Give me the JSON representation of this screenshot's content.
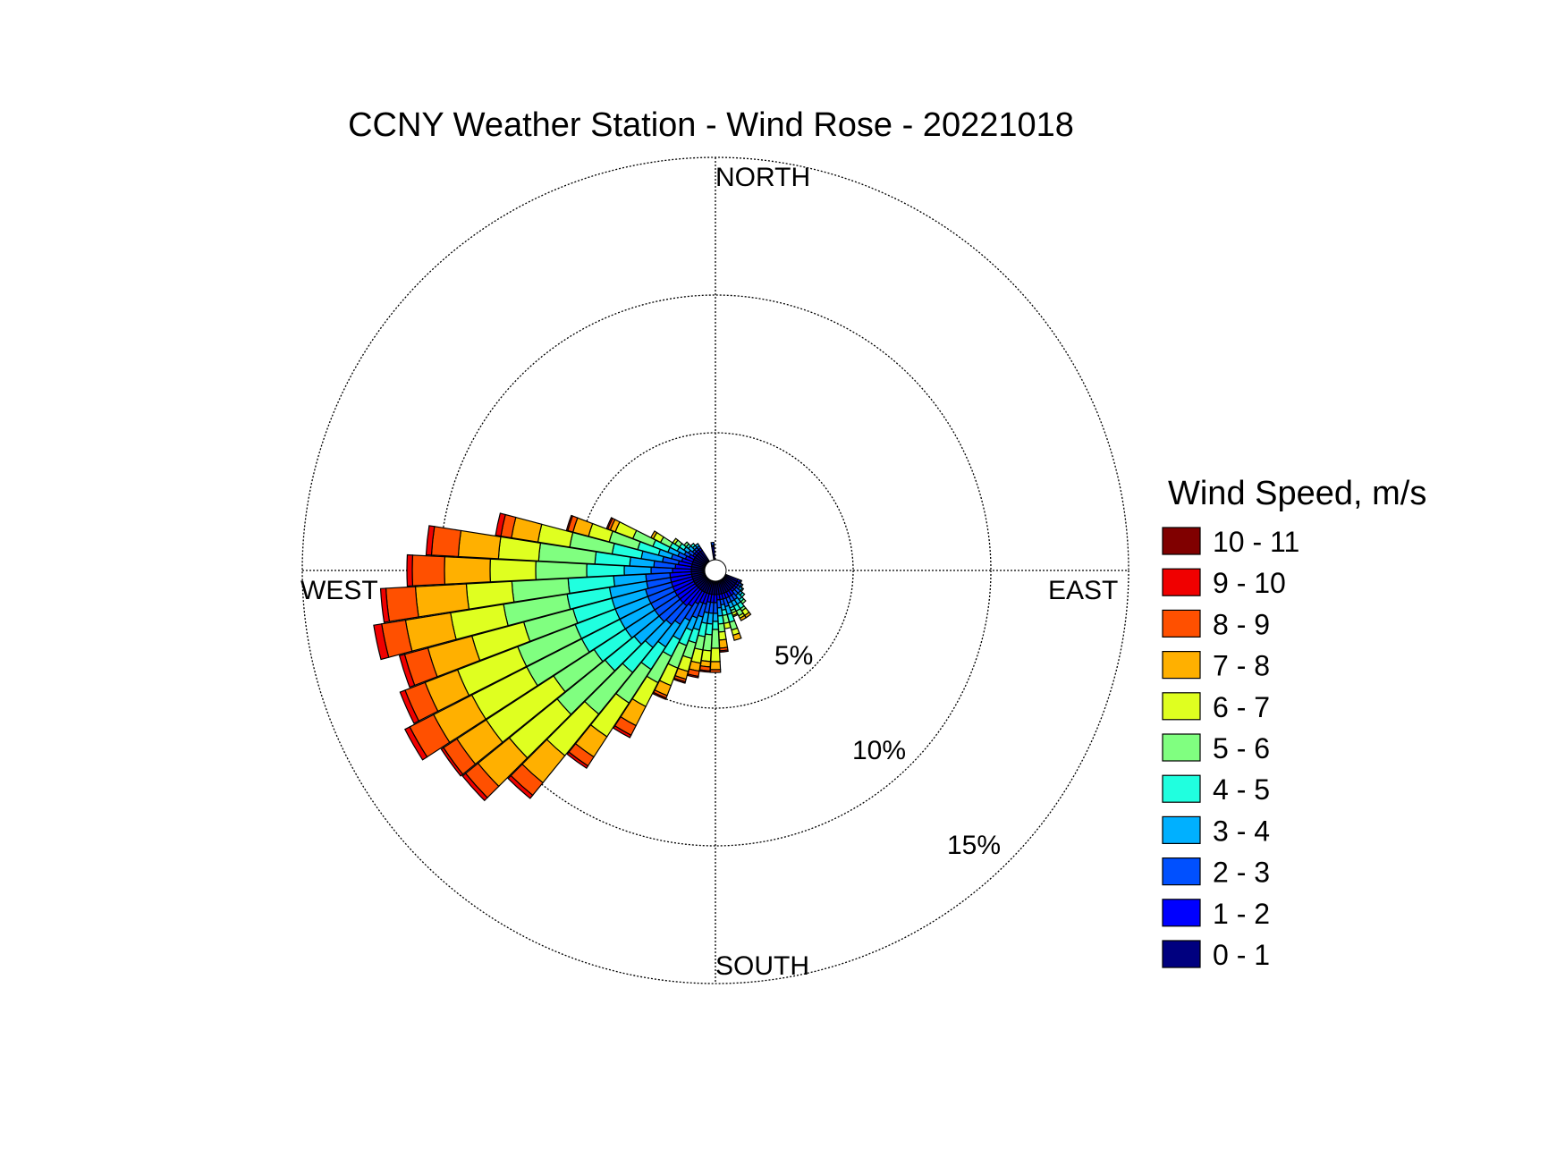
{
  "chart_data": {
    "type": "wind_rose",
    "title": "CCNY Weather Station - Wind Rose - 20221018",
    "directions": [
      "NORTH",
      "EAST",
      "SOUTH",
      "WEST"
    ],
    "ring_max": 15,
    "rings": [
      5,
      10,
      15
    ],
    "ring_labels": [
      "5%",
      "10%",
      "15%"
    ],
    "grid": true,
    "legend": {
      "title": "Wind Speed, m/s",
      "placement": "right",
      "bins": [
        {
          "label": "0 - 1",
          "color": "#00007f"
        },
        {
          "label": "1 - 2",
          "color": "#0000ff"
        },
        {
          "label": "2 - 3",
          "color": "#0050ff"
        },
        {
          "label": "3 - 4",
          "color": "#00b0ff"
        },
        {
          "label": "4 - 5",
          "color": "#20ffdf"
        },
        {
          "label": "5 - 6",
          "color": "#80ff80"
        },
        {
          "label": "6 - 7",
          "color": "#dfff20"
        },
        {
          "label": "7 - 8",
          "color": "#ffb000"
        },
        {
          "label": "8 - 9",
          "color": "#ff5000"
        },
        {
          "label": "9 - 10",
          "color": "#f00000"
        },
        {
          "label": "10 - 11",
          "color": "#800000"
        }
      ]
    },
    "sectors": [
      {
        "direction_deg": 174,
        "cumulative": [
          0.5,
          0.7,
          1.0,
          1.3,
          1.6,
          1.9,
          2.2,
          2.5,
          2.6,
          2.65
        ]
      },
      {
        "direction_deg": 180,
        "cumulative": [
          0.5,
          0.8,
          1.2,
          1.5,
          1.8,
          2.5,
          3.0,
          3.3,
          3.4
        ]
      },
      {
        "direction_deg": 186,
        "cumulative": [
          0.5,
          0.8,
          1.2,
          1.6,
          2.0,
          2.6,
          3.0,
          3.2,
          3.35,
          3.4
        ]
      },
      {
        "direction_deg": 144,
        "cumulative": [
          0.5,
          0.7,
          0.9,
          1.1,
          1.3,
          1.4,
          1.6,
          1.7
        ]
      },
      {
        "direction_deg": 150,
        "cumulative": [
          0.5,
          0.7,
          0.9,
          1.1,
          1.3,
          1.5,
          1.6,
          1.7
        ]
      },
      {
        "direction_deg": 156,
        "cumulative": [
          0.5,
          0.7,
          0.9,
          1.1,
          1.2,
          1.3,
          1.4,
          1.45
        ]
      },
      {
        "direction_deg": 162,
        "cumulative": [
          0.5,
          0.7,
          1.0,
          1.3,
          1.6,
          1.9,
          2.1,
          2.3
        ]
      },
      {
        "direction_deg": 168,
        "cumulative": [
          0.5,
          0.7,
          0.9,
          1.1,
          1.3,
          1.6,
          1.8
        ]
      },
      {
        "direction_deg": 192,
        "cumulative": [
          0.5,
          0.8,
          1.2,
          1.6,
          2.1,
          2.6,
          3.1,
          3.4,
          3.6,
          3.65
        ]
      },
      {
        "direction_deg": 198,
        "cumulative": [
          0.5,
          0.9,
          1.4,
          1.9,
          2.4,
          3.0,
          3.5,
          3.8,
          3.9,
          3.95
        ]
      },
      {
        "direction_deg": 204,
        "cumulative": [
          0.5,
          0.9,
          1.5,
          2.0,
          2.6,
          3.5,
          4.2,
          4.6,
          4.7,
          4.75
        ]
      },
      {
        "direction_deg": 210,
        "cumulative": [
          0.5,
          1.0,
          1.7,
          2.5,
          3.2,
          4.3,
          5.3,
          6.1,
          6.5,
          6.6
        ]
      },
      {
        "direction_deg": 216,
        "cumulative": [
          0.5,
          1.2,
          2.0,
          3.0,
          4.0,
          5.5,
          7.0,
          7.9,
          8.3,
          8.4
        ]
      },
      {
        "direction_deg": 222,
        "cumulative": [
          0.5,
          1.3,
          2.2,
          3.3,
          4.5,
          6.5,
          8.5,
          9.8,
          10.4,
          10.55
        ]
      },
      {
        "direction_deg": 228,
        "cumulative": [
          0.5,
          1.3,
          2.3,
          3.5,
          4.9,
          7.2,
          9.5,
          11.0,
          11.6,
          11.75
        ]
      },
      {
        "direction_deg": 234,
        "cumulative": [
          0.5,
          1.3,
          2.3,
          3.6,
          5.0,
          6.8,
          9.8,
          11.1,
          11.7,
          11.8
        ]
      },
      {
        "direction_deg": 240,
        "cumulative": [
          0.5,
          1.3,
          2.3,
          3.6,
          5.2,
          7.5,
          9.8,
          11.4,
          12.4,
          12.6
        ]
      },
      {
        "direction_deg": 246,
        "cumulative": [
          0.5,
          1.3,
          2.3,
          3.6,
          5.2,
          7.5,
          9.9,
          11.2,
          12.0,
          12.2
        ]
      },
      {
        "direction_deg": 252,
        "cumulative": [
          0.5,
          1.3,
          2.3,
          3.6,
          5.1,
          7.0,
          9.0,
          10.7,
          11.6,
          11.8
        ]
      },
      {
        "direction_deg": 258,
        "cumulative": [
          0.5,
          1.3,
          2.2,
          3.6,
          5.2,
          7.6,
          9.6,
          11.3,
          12.2,
          12.5
        ]
      },
      {
        "direction_deg": 264,
        "cumulative": [
          0.5,
          1.3,
          2.2,
          3.4,
          5.1,
          7.2,
          8.9,
          10.8,
          11.9,
          12.1
        ]
      },
      {
        "direction_deg": 270,
        "cumulative": [
          0.5,
          1.2,
          2.0,
          3.0,
          4.4,
          6.3,
          8.0,
          9.7,
          10.9,
          11.1
        ]
      },
      {
        "direction_deg": 276,
        "cumulative": [
          0.5,
          1.1,
          1.9,
          2.8,
          4.1,
          6.2,
          7.7,
          9.2,
          10.2,
          10.4
        ]
      },
      {
        "direction_deg": 282,
        "cumulative": [
          0.5,
          1.0,
          1.6,
          2.4,
          3.5,
          5.1,
          6.3,
          7.3,
          7.7,
          7.9
        ]
      },
      {
        "direction_deg": 288,
        "cumulative": [
          0.5,
          0.9,
          1.3,
          1.8,
          2.6,
          3.7,
          4.5,
          5.1,
          5.3,
          5.35
        ]
      },
      {
        "direction_deg": 294,
        "cumulative": [
          0.5,
          0.8,
          1.1,
          1.5,
          2.1,
          2.9,
          3.6,
          3.8,
          3.9,
          3.95
        ]
      },
      {
        "direction_deg": 300,
        "cumulative": [
          0.5,
          0.7,
          0.9,
          1.2,
          1.5,
          1.9,
          2.2,
          2.3
        ]
      },
      {
        "direction_deg": 306,
        "cumulative": [
          0.5,
          0.6,
          0.8,
          1.0,
          1.2,
          1.4,
          1.5
        ]
      },
      {
        "direction_deg": 312,
        "cumulative": [
          0.5,
          0.6,
          0.7,
          0.9,
          1.0,
          1.1
        ]
      },
      {
        "direction_deg": 318,
        "cumulative": [
          0.5,
          0.6,
          0.7,
          0.8,
          0.9
        ]
      },
      {
        "direction_deg": 324,
        "cumulative": [
          0.5,
          0.6,
          0.7,
          0.8
        ]
      },
      {
        "direction_deg": 132,
        "cumulative": [
          0.5,
          0.6,
          0.8,
          0.9,
          1.0
        ]
      },
      {
        "direction_deg": 138,
        "cumulative": [
          0.5,
          0.6,
          0.8,
          1.0,
          1.1,
          1.2
        ]
      },
      {
        "direction_deg": 126,
        "cumulative": [
          0.5,
          0.6,
          0.7,
          0.8,
          0.85
        ]
      },
      {
        "direction_deg": 120,
        "cumulative": [
          0.5,
          0.6,
          0.7,
          0.75
        ]
      },
      {
        "direction_deg": 114,
        "cumulative": [
          0.5,
          0.6,
          0.65
        ]
      },
      {
        "direction_deg": 354,
        "cumulative": [
          0.5,
          0.55,
          0.65
        ]
      }
    ]
  }
}
